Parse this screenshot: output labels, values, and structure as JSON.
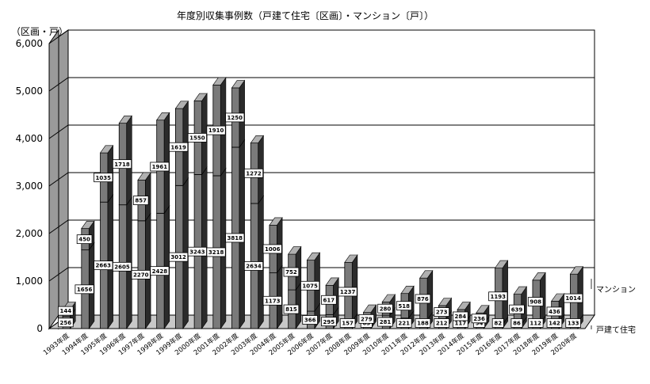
{
  "chart_data": {
    "type": "bar",
    "title": "年度別収集事例数（戸建て住宅〔区画〕・マンション〔戸〕）",
    "ylabel": "（区画・戸）",
    "ylim": [
      0,
      6000
    ],
    "y_ticks": [
      "0",
      "1,000",
      "2,000",
      "3,000",
      "4,000",
      "5,000",
      "6,000"
    ],
    "grid": true,
    "legend_position": "right",
    "categories": [
      "1993年度",
      "1994年度",
      "1995年度",
      "1996年度",
      "1997年度",
      "1998年度",
      "1999年度",
      "2000年度",
      "2001年度",
      "2002年度",
      "2003年度",
      "2004年度",
      "2005年度",
      "2006年度",
      "2007年度",
      "2008年度",
      "2009年度",
      "2010年度",
      "2011年度",
      "2012年度",
      "2013年度",
      "2014年度",
      "2015年度",
      "2016年度",
      "2017年度",
      "2018年度",
      "2019年度",
      "2020年度"
    ],
    "series": [
      {
        "name": "戸建て住宅",
        "values": [
          256,
          1656,
          2663,
          2605,
          2270,
          2428,
          3012,
          3243,
          3218,
          3818,
          2634,
          1173,
          815,
          366,
          295,
          157,
          63,
          281,
          221,
          188,
          212,
          117,
          94,
          82,
          86,
          112,
          142,
          133
        ]
      },
      {
        "name": "マンション",
        "values": [
          144,
          450,
          1035,
          1718,
          857,
          1961,
          1619,
          1550,
          1910,
          1250,
          1272,
          1006,
          752,
          1075,
          617,
          1237,
          279,
          280,
          518,
          876,
          273,
          284,
          236,
          1193,
          639,
          908,
          436,
          1014
        ]
      }
    ],
    "colors": {
      "bar_front": "#7a7a7a",
      "bar_dark": "#2b2b2b",
      "bar_top": "#b0b0b0",
      "wall": "#ffffff",
      "side_wall": "#9a9a9a",
      "floor": "#c8c8c8"
    }
  }
}
